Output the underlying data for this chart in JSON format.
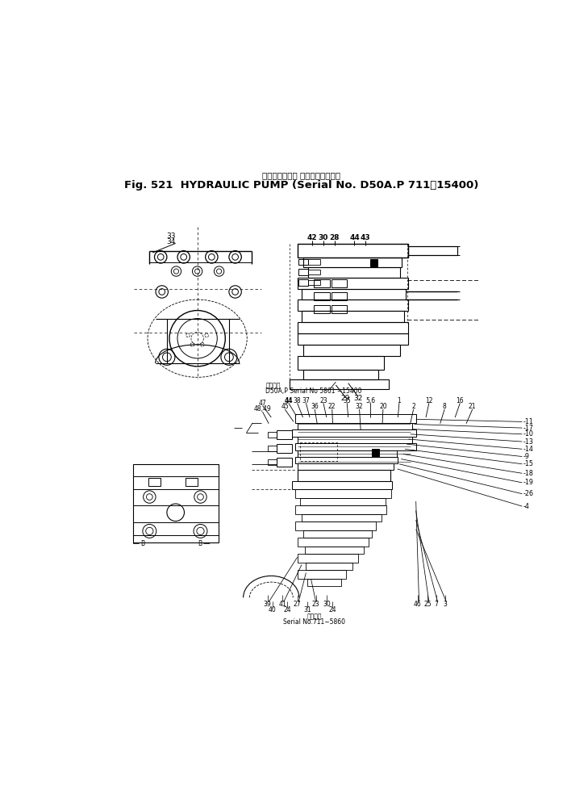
{
  "title_japanese": "ハイドロリック ボンプ　適用号機",
  "title_english": "Fig. 521  HYDRAULIC PUMP (Serial No. D50A.P 711～15400)",
  "sub_upper_jp": "適用機種",
  "sub_upper_en": "D50A,P Serial No 5861 −15400",
  "sub_lower_jp": "適用機種",
  "sub_lower_en": "Serial No.711−5860",
  "bg": "#ffffff"
}
